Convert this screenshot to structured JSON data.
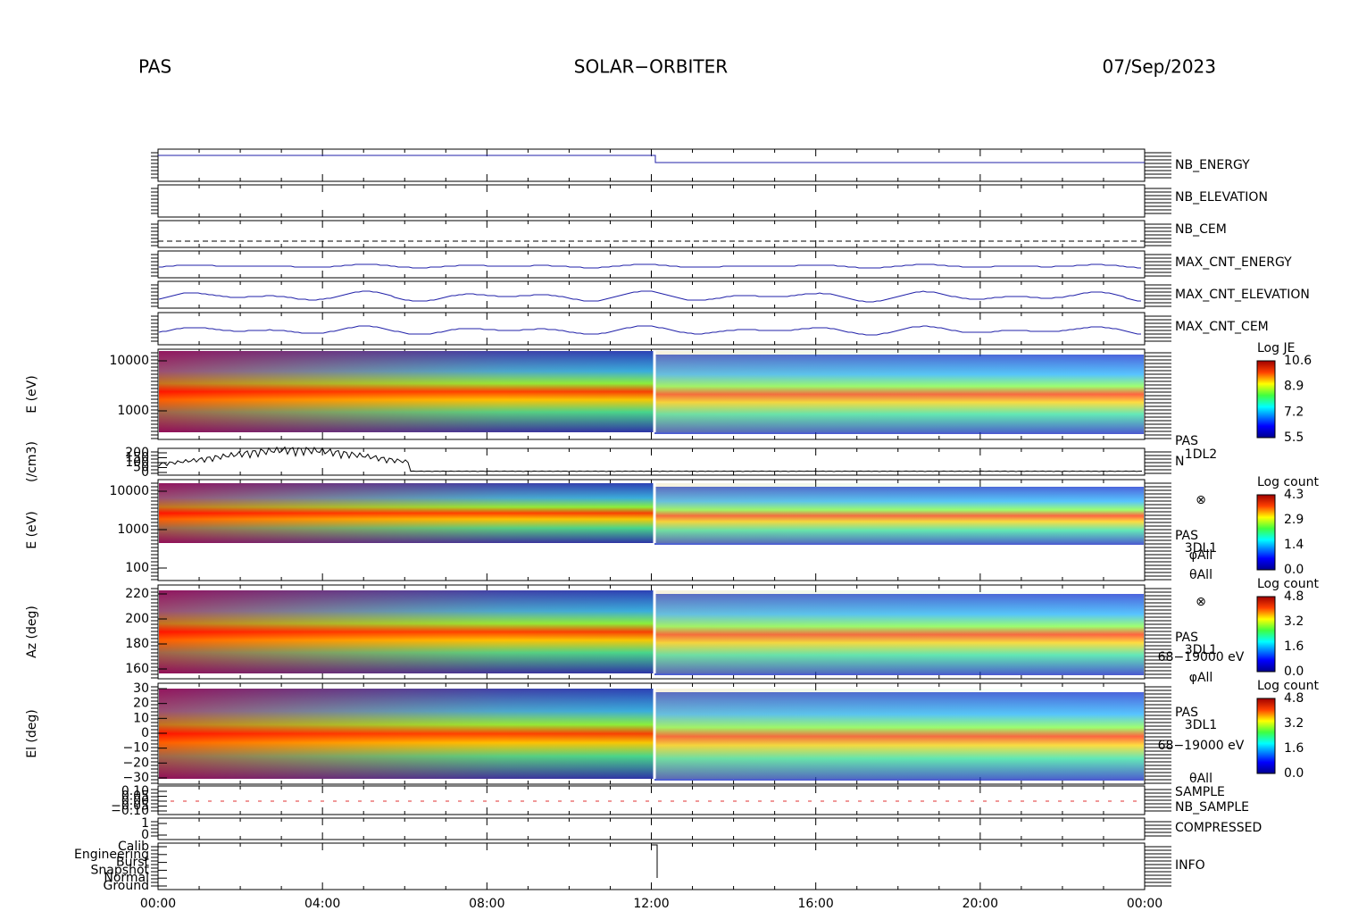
{
  "header": {
    "instrument": "PAS",
    "mission": "SOLAR−ORBITER",
    "date": "07/Sep/2023"
  },
  "time_axis": [
    "00:00",
    "04:00",
    "08:00",
    "12:00",
    "16:00",
    "20:00",
    "00:00"
  ],
  "panels": [
    {
      "right": [
        "NB_ENERGY"
      ]
    },
    {
      "right": [
        "NB_ELEVATION"
      ]
    },
    {
      "right": [
        "NB_CEM"
      ]
    },
    {
      "right": [
        "MAX_CNT_ENERGY"
      ]
    },
    {
      "right": [
        "MAX_CNT_ELEVATION"
      ]
    },
    {
      "right": [
        "MAX_CNT_CEM"
      ]
    },
    {
      "ylabel": "E (eV)",
      "yticks": [
        "10000",
        "1000"
      ],
      "colorbar": {
        "title": "Log JE",
        "ticks": [
          "10.6",
          "8.9",
          "7.2",
          "5.5"
        ]
      },
      "right": [
        "PAS",
        "1DL2"
      ]
    },
    {
      "ylabel": "(/cm3)",
      "yticks": [
        "200",
        "150",
        "100",
        "50",
        "0"
      ],
      "right": [
        "N"
      ]
    },
    {
      "ylabel": "E (eV)",
      "yticks": [
        "10000",
        "1000",
        "100"
      ],
      "colorbar": {
        "title": "Log count",
        "ticks": [
          "4.3",
          "2.9",
          "1.4",
          "0.0"
        ]
      },
      "right": [
        "⊗",
        "PAS",
        "3DL1",
        "φAll",
        "θAll"
      ]
    },
    {
      "ylabel": "Az (deg)",
      "yticks": [
        "220",
        "200",
        "180",
        "160"
      ],
      "colorbar": {
        "title": "Log count",
        "ticks": [
          "4.8",
          "3.2",
          "1.6",
          "0.0"
        ]
      },
      "right": [
        "⊗",
        "PAS",
        "3DL1",
        "68−19000 eV",
        "φAll"
      ]
    },
    {
      "ylabel": "El (deg)",
      "yticks": [
        "30",
        "20",
        "10",
        "0",
        "−10",
        "−20",
        "−30"
      ],
      "colorbar": {
        "title": "Log count",
        "ticks": [
          "4.8",
          "3.2",
          "1.6",
          "0.0"
        ]
      },
      "right": [
        "PAS",
        "3DL1",
        "68−19000 eV",
        "θAll"
      ]
    },
    {
      "yticks": [
        "0.10",
        "0.05",
        "0.00",
        "−0.05",
        "−0.10"
      ],
      "right": [
        "SAMPLE",
        "NB_SAMPLE"
      ]
    },
    {
      "yticks": [
        "1",
        "0"
      ],
      "right": [
        "COMPRESSED"
      ]
    },
    {
      "yticks": [
        "Calib",
        "Engineering",
        "Burst",
        "Snapshot",
        "Normal",
        "Ground"
      ],
      "right": [
        "INFO"
      ]
    }
  ]
}
